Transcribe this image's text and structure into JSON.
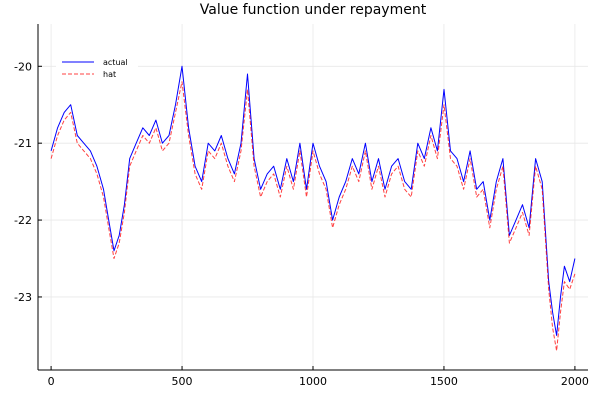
{
  "chart_data": {
    "type": "line",
    "title": "Value function under repayment",
    "xlabel": "",
    "ylabel": "",
    "xlim": [
      -50,
      2050
    ],
    "ylim": [
      -23.95,
      -19.45
    ],
    "xticks": [
      0,
      500,
      1000,
      1500,
      2000
    ],
    "yticks": [
      -20,
      -21,
      -22,
      -23
    ],
    "grid": true,
    "legend": "top-left",
    "series": [
      {
        "name": "actual",
        "color": "#0000ff",
        "style": "solid",
        "x": [
          0,
          25,
          50,
          75,
          100,
          125,
          150,
          175,
          200,
          220,
          240,
          260,
          280,
          300,
          325,
          350,
          375,
          400,
          425,
          450,
          475,
          500,
          525,
          550,
          575,
          600,
          625,
          650,
          675,
          700,
          725,
          750,
          775,
          800,
          825,
          850,
          875,
          900,
          925,
          950,
          975,
          1000,
          1025,
          1050,
          1075,
          1100,
          1125,
          1150,
          1175,
          1200,
          1225,
          1250,
          1275,
          1300,
          1325,
          1350,
          1375,
          1400,
          1425,
          1450,
          1475,
          1500,
          1525,
          1550,
          1575,
          1600,
          1625,
          1650,
          1675,
          1700,
          1725,
          1750,
          1775,
          1800,
          1825,
          1850,
          1875,
          1900,
          1915,
          1930,
          1945,
          1960,
          1980,
          2000
        ],
        "y": [
          -21.1,
          -20.8,
          -20.6,
          -20.5,
          -20.9,
          -21.0,
          -21.1,
          -21.3,
          -21.6,
          -22.0,
          -22.4,
          -22.2,
          -21.8,
          -21.2,
          -21.0,
          -20.8,
          -20.9,
          -20.7,
          -21.0,
          -20.9,
          -20.5,
          -20.0,
          -20.8,
          -21.3,
          -21.5,
          -21.0,
          -21.1,
          -20.9,
          -21.2,
          -21.4,
          -21.0,
          -20.1,
          -21.2,
          -21.6,
          -21.4,
          -21.3,
          -21.6,
          -21.2,
          -21.5,
          -21.0,
          -21.6,
          -21.0,
          -21.3,
          -21.5,
          -22.0,
          -21.7,
          -21.5,
          -21.2,
          -21.4,
          -21.0,
          -21.5,
          -21.2,
          -21.6,
          -21.3,
          -21.2,
          -21.5,
          -21.6,
          -21.0,
          -21.2,
          -20.8,
          -21.1,
          -20.3,
          -21.1,
          -21.2,
          -21.5,
          -21.1,
          -21.6,
          -21.5,
          -22.0,
          -21.5,
          -21.2,
          -22.2,
          -22.0,
          -21.8,
          -22.1,
          -21.2,
          -21.5,
          -22.8,
          -23.2,
          -23.5,
          -23.0,
          -22.6,
          -22.8,
          -22.5
        ]
      },
      {
        "name": "hat",
        "color": "#ff0000",
        "style": "dashed",
        "x": [
          0,
          25,
          50,
          75,
          100,
          125,
          150,
          175,
          200,
          220,
          240,
          260,
          280,
          300,
          325,
          350,
          375,
          400,
          425,
          450,
          475,
          500,
          525,
          550,
          575,
          600,
          625,
          650,
          675,
          700,
          725,
          750,
          775,
          800,
          825,
          850,
          875,
          900,
          925,
          950,
          975,
          1000,
          1025,
          1050,
          1075,
          1100,
          1125,
          1150,
          1175,
          1200,
          1225,
          1250,
          1275,
          1300,
          1325,
          1350,
          1375,
          1400,
          1425,
          1450,
          1475,
          1500,
          1525,
          1550,
          1575,
          1600,
          1625,
          1650,
          1675,
          1700,
          1725,
          1750,
          1775,
          1800,
          1825,
          1850,
          1875,
          1900,
          1915,
          1930,
          1945,
          1960,
          1980,
          2000
        ],
        "y": [
          -21.2,
          -20.9,
          -20.7,
          -20.6,
          -21.0,
          -21.1,
          -21.2,
          -21.4,
          -21.7,
          -22.1,
          -22.5,
          -22.3,
          -21.9,
          -21.3,
          -21.1,
          -20.9,
          -21.0,
          -20.8,
          -21.1,
          -21.0,
          -20.6,
          -20.2,
          -20.9,
          -21.4,
          -21.6,
          -21.1,
          -21.2,
          -21.0,
          -21.3,
          -21.5,
          -21.1,
          -20.3,
          -21.3,
          -21.7,
          -21.5,
          -21.4,
          -21.7,
          -21.3,
          -21.6,
          -21.1,
          -21.7,
          -21.1,
          -21.4,
          -21.6,
          -22.1,
          -21.8,
          -21.6,
          -21.3,
          -21.5,
          -21.1,
          -21.6,
          -21.3,
          -21.7,
          -21.4,
          -21.3,
          -21.6,
          -21.7,
          -21.1,
          -21.3,
          -20.9,
          -21.2,
          -20.5,
          -21.2,
          -21.3,
          -21.6,
          -21.2,
          -21.7,
          -21.6,
          -22.1,
          -21.6,
          -21.3,
          -22.3,
          -22.1,
          -21.9,
          -22.2,
          -21.3,
          -21.6,
          -22.9,
          -23.4,
          -23.7,
          -23.2,
          -22.8,
          -22.9,
          -22.7
        ]
      }
    ]
  }
}
